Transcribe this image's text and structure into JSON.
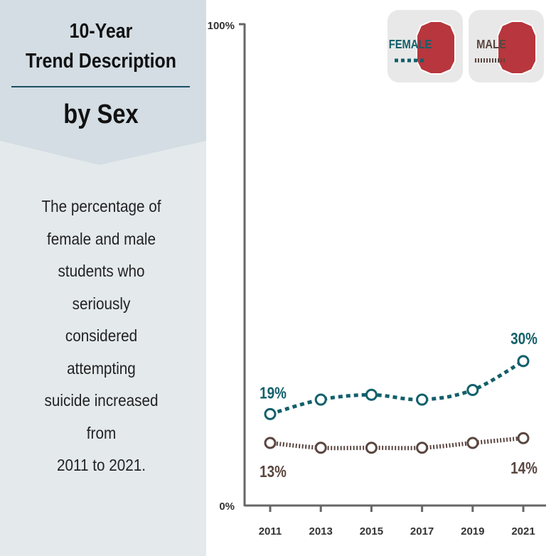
{
  "sidebar": {
    "title_line1": "10-Year",
    "title_line2": "Trend Description",
    "subtitle": "by Sex",
    "description_lines": [
      "The percentage of",
      "female and male",
      "students who seriously",
      "considered attempting",
      "suicide increased from",
      "2011 to 2021."
    ]
  },
  "legend": {
    "female_label": "FEMALE",
    "male_label": "MALE"
  },
  "colors": {
    "female": "#12606b",
    "male": "#5a4640",
    "stop_sign": "#b8363d",
    "sidebar_bg": "#e4e9ec",
    "header_bg": "#d3dde3"
  },
  "chart_data": {
    "type": "line",
    "title": "10-Year Trend Description by Sex",
    "x": [
      "2011",
      "2013",
      "2015",
      "2017",
      "2019",
      "2021"
    ],
    "ylim": [
      0,
      100
    ],
    "y_ticks": [
      "0%",
      "100%"
    ],
    "series": [
      {
        "name": "FEMALE",
        "values": [
          19,
          22,
          23,
          22,
          24,
          30
        ],
        "style": "dotted",
        "labels": {
          "start": "19%",
          "end": "30%"
        }
      },
      {
        "name": "MALE",
        "values": [
          13,
          12,
          12,
          12,
          13,
          14
        ],
        "style": "dashed",
        "labels": {
          "start": "13%",
          "end": "14%"
        }
      }
    ]
  }
}
